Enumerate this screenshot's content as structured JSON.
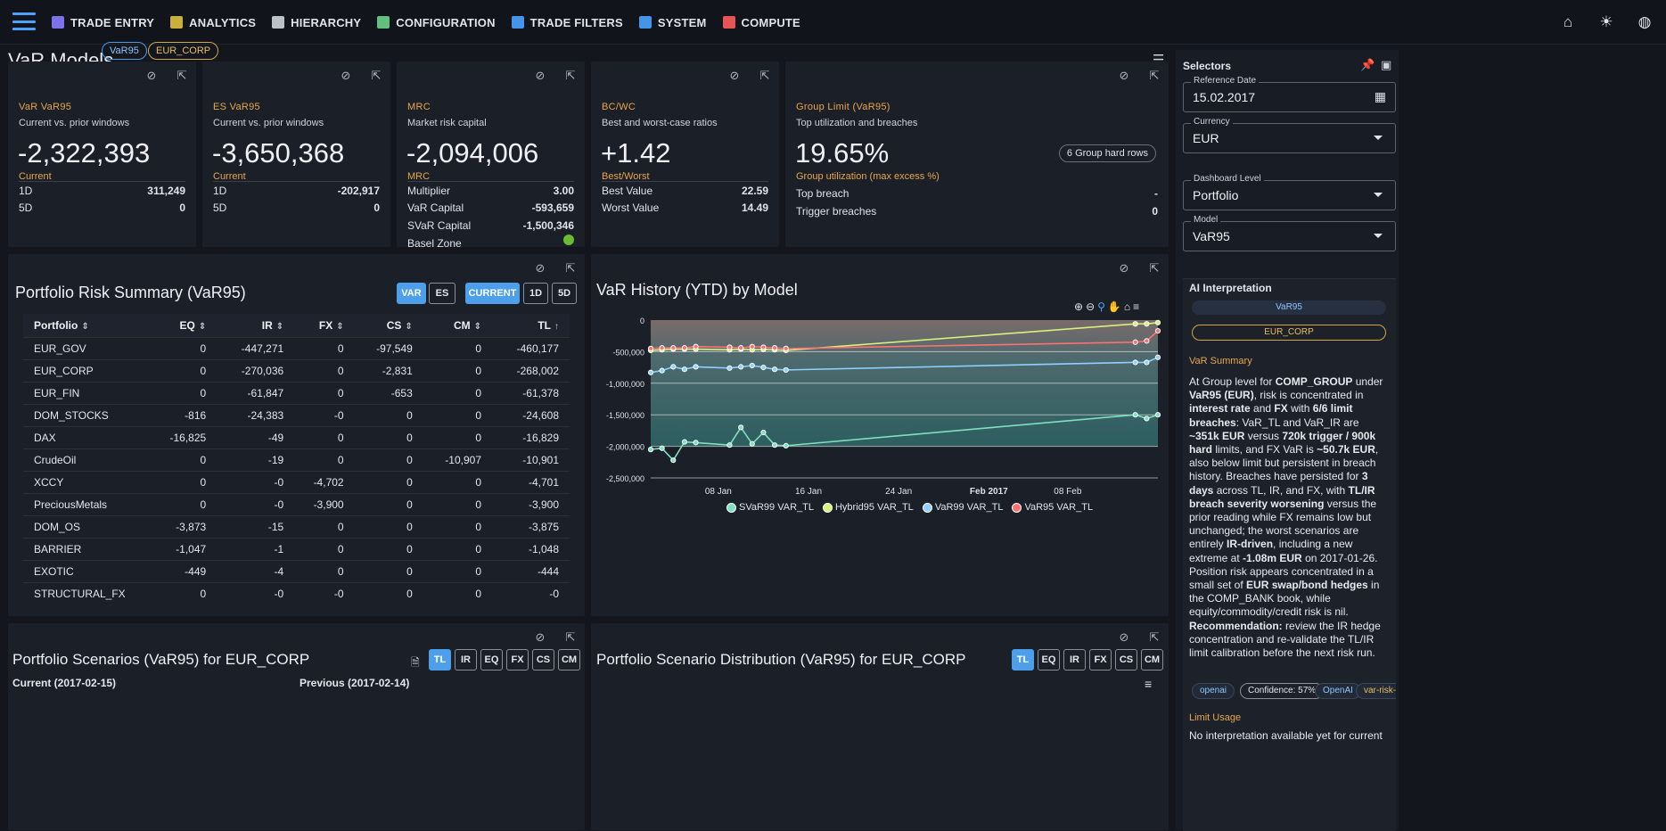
{
  "nav": {
    "items": [
      {
        "label": "TRADE ENTRY",
        "icon": "document-icon",
        "color": "#8a7cff"
      },
      {
        "label": "ANALYTICS",
        "icon": "bar-chart-icon",
        "color": "#e0c040"
      },
      {
        "label": "HIERARCHY",
        "icon": "hierarchy-icon",
        "color": "#cfd3da"
      },
      {
        "label": "CONFIGURATION",
        "icon": "tools-icon",
        "color": "#6cd38a"
      },
      {
        "label": "TRADE FILTERS",
        "icon": "filter-icon",
        "color": "#4aa3ff"
      },
      {
        "label": "SYSTEM",
        "icon": "system-icon",
        "color": "#4aa3ff"
      },
      {
        "label": "COMPUTE",
        "icon": "compute-icon",
        "color": "#ff5b5b"
      }
    ]
  },
  "page": {
    "title": "VaR Models",
    "chip_model": "VaR95",
    "chip_book": "EUR_CORP"
  },
  "kpis": {
    "var": {
      "label": "VaR VaR95",
      "sub": "Current vs. prior windows",
      "value": "-2,322,393",
      "cur": "Current",
      "rows": [
        {
          "k": "1D",
          "v": "311,249"
        },
        {
          "k": "5D",
          "v": "0"
        }
      ]
    },
    "es": {
      "label": "ES VaR95",
      "sub": "Current vs. prior windows",
      "value": "-3,650,368",
      "cur": "Current",
      "rows": [
        {
          "k": "1D",
          "v": "-202,917"
        },
        {
          "k": "5D",
          "v": "0"
        }
      ]
    },
    "mrc": {
      "label": "MRC",
      "sub": "Market risk capital",
      "value": "-2,094,006",
      "cur": "MRC",
      "rows": [
        {
          "k": "Multiplier",
          "v": "3.00"
        },
        {
          "k": "VaR Capital",
          "v": "-593,659"
        },
        {
          "k": "SVaR Capital",
          "v": "-1,500,346"
        },
        {
          "k": "Basel Zone",
          "v": ""
        }
      ]
    },
    "bcwc": {
      "label": "BC/WC",
      "sub": "Best and worst-case ratios",
      "value": "+1.42",
      "cur": "Best/Worst",
      "rows": [
        {
          "k": "Best Value",
          "v": "22.59"
        },
        {
          "k": "Worst Value",
          "v": "14.49"
        }
      ]
    },
    "group": {
      "label": "Group Limit (VaR95)",
      "sub": "Top utilization and breaches",
      "value": "19.65%",
      "cur": "Group utilization (max excess %)",
      "badge": "6 Group hard rows",
      "rows": [
        {
          "k": "Top breach",
          "v": "-"
        },
        {
          "k": "Trigger breaches",
          "v": "0"
        }
      ]
    }
  },
  "summary": {
    "title": "Portfolio Risk Summary (VaR95)",
    "toggles": {
      "var": "VAR",
      "es": "ES",
      "current": "CURRENT",
      "d1": "1D",
      "d5": "5D"
    },
    "columns": [
      "Portfolio",
      "EQ",
      "IR",
      "FX",
      "CS",
      "CM",
      "TL"
    ],
    "rows": [
      [
        "EUR_GOV",
        "0",
        "-447,271",
        "0",
        "-97,549",
        "0",
        "-460,177"
      ],
      [
        "EUR_CORP",
        "0",
        "-270,036",
        "0",
        "-2,831",
        "0",
        "-268,002"
      ],
      [
        "EUR_FIN",
        "0",
        "-61,847",
        "0",
        "-653",
        "0",
        "-61,378"
      ],
      [
        "DOM_STOCKS",
        "-816",
        "-24,383",
        "-0",
        "0",
        "0",
        "-24,608"
      ],
      [
        "DAX",
        "-16,825",
        "-49",
        "0",
        "0",
        "0",
        "-16,829"
      ],
      [
        "CrudeOil",
        "0",
        "-19",
        "0",
        "0",
        "-10,907",
        "-10,901"
      ],
      [
        "XCCY",
        "0",
        "-0",
        "-4,702",
        "0",
        "0",
        "-4,701"
      ],
      [
        "PreciousMetals",
        "0",
        "-0",
        "-3,900",
        "0",
        "0",
        "-3,900"
      ],
      [
        "DOM_OS",
        "-3,873",
        "-15",
        "0",
        "0",
        "0",
        "-3,875"
      ],
      [
        "BARRIER",
        "-1,047",
        "-1",
        "0",
        "0",
        "0",
        "-1,048"
      ],
      [
        "EXOTIC",
        "-449",
        "-4",
        "0",
        "0",
        "0",
        "-444"
      ],
      [
        "STRUCTURAL_FX",
        "0",
        "-0",
        "-0",
        "0",
        "0",
        "-0"
      ]
    ]
  },
  "history": {
    "title": "VaR History (YTD) by Model"
  },
  "chart_data": {
    "type": "area",
    "title": "VaR History (YTD) by Model",
    "ylim": [
      -2500000,
      0
    ],
    "y_ticks": [
      "0",
      "-500,000",
      "-1,000,000",
      "-1,500,000",
      "-2,000,000",
      "-2,500,000"
    ],
    "x_ticks": [
      "08 Jan",
      "16 Jan",
      "24 Jan",
      "Feb 2017",
      "08 Feb"
    ],
    "x": [
      "2017-01-02",
      "2017-01-03",
      "2017-01-04",
      "2017-01-05",
      "2017-01-06",
      "2017-01-09",
      "2017-01-10",
      "2017-01-11",
      "2017-01-12",
      "2017-01-13",
      "2017-01-14",
      "2017-02-14",
      "2017-02-15",
      "2017-02-16"
    ],
    "series": [
      {
        "name": "SVaR99 VAR_TL",
        "color": "#7ee0c0",
        "values": [
          -2050000,
          -2030000,
          -2220000,
          -1930000,
          -1940000,
          -1980000,
          -1700000,
          -1960000,
          -1780000,
          -1980000,
          -1990000,
          -1500000,
          -1560000,
          -1500000
        ]
      },
      {
        "name": "Hybrid95 VAR_TL",
        "color": "#d9f07a",
        "values": [
          -480000,
          -470000,
          -460000,
          -460000,
          -460000,
          -470000,
          -460000,
          -470000,
          -465000,
          -470000,
          -480000,
          -60000,
          -60000,
          -40000
        ]
      },
      {
        "name": "VaR99 VAR_TL",
        "color": "#8fd0ff",
        "values": [
          -830000,
          -800000,
          -740000,
          -780000,
          -740000,
          -760000,
          -740000,
          -720000,
          -750000,
          -780000,
          -790000,
          -670000,
          -670000,
          -590000
        ]
      },
      {
        "name": "VaR95 VAR_TL",
        "color": "#ff7070",
        "values": [
          -450000,
          -440000,
          -440000,
          -440000,
          -420000,
          -430000,
          -440000,
          -420000,
          -430000,
          -440000,
          -450000,
          -350000,
          -330000,
          -170000
        ]
      }
    ]
  },
  "scenarios": {
    "title": "Portfolio Scenarios (VaR95) for EUR_CORP",
    "current": "Current (2017-02-15)",
    "previous": "Previous (2017-02-14)",
    "toggles": [
      "TL",
      "IR",
      "EQ",
      "FX",
      "CS",
      "CM"
    ]
  },
  "distribution": {
    "title": "Portfolio Scenario Distribution (VaR95) for EUR_CORP",
    "toggles": [
      "TL",
      "EQ",
      "IR",
      "FX",
      "CS",
      "CM"
    ]
  },
  "sidebar": {
    "title": "Selectors",
    "reference_date": {
      "label": "Reference Date",
      "value": "15.02.2017"
    },
    "currency": {
      "label": "Currency",
      "value": "EUR"
    },
    "level": {
      "label": "Dashboard Level",
      "value": "Portfolio"
    },
    "model": {
      "label": "Model",
      "value": "VaR95"
    },
    "ai": {
      "title": "AI Interpretation",
      "chip_model": "VaR95",
      "chip_book": "EUR_CORP",
      "summary_title": "VaR Summary",
      "tags": {
        "provider": "openai",
        "confidence": "Confidence: 57%",
        "vendor": "OpenAI",
        "slug": "var-risk-"
      },
      "limit_title": "Limit Usage",
      "limit_text": "No interpretation available yet for current"
    }
  }
}
